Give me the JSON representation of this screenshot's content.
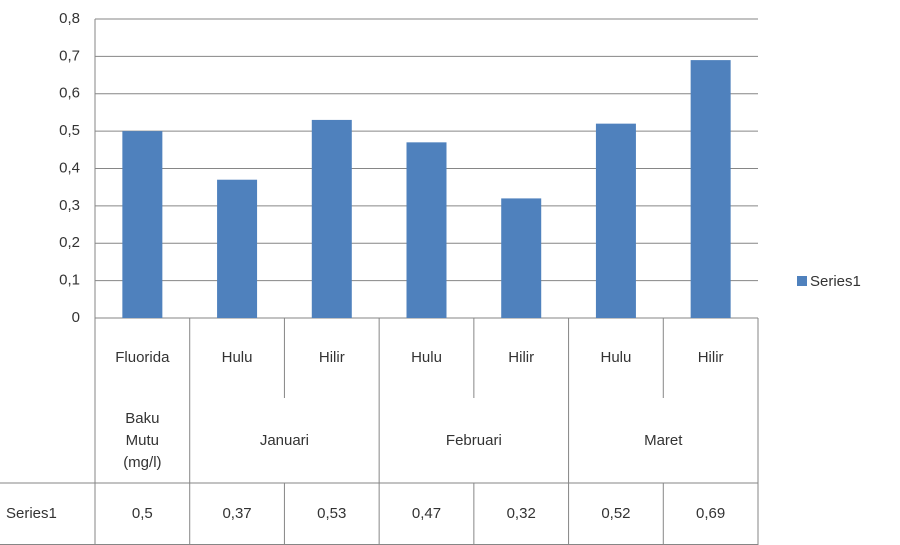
{
  "chart_data": {
    "type": "bar",
    "categories": [
      "Fluorida",
      "Hulu",
      "Hilir",
      "Hulu",
      "Hilir",
      "Hulu",
      "Hilir"
    ],
    "group_labels": [
      "Baku Mutu (mg/l)",
      "Januari",
      null,
      "Februari",
      null,
      "Maret",
      null
    ],
    "series": [
      {
        "name": "Series1",
        "color": "#4f81bd",
        "values": [
          0.5,
          0.37,
          0.53,
          0.47,
          0.32,
          0.52,
          0.69
        ],
        "value_labels": [
          "0,5",
          "0,37",
          "0,53",
          "0,47",
          "0,32",
          "0,52",
          "0,69"
        ]
      }
    ],
    "ylim": [
      0,
      0.8
    ],
    "yticks": [
      0,
      {
        "value": 0.1,
        "label": "0,1"
      },
      {
        "value": 0.2,
        "label": "0,2"
      },
      {
        "value": 0.3,
        "label": "0,3"
      },
      {
        "value": 0.4,
        "label": "0,4"
      },
      {
        "value": 0.5,
        "label": "0,5"
      },
      {
        "value": 0.6,
        "label": "0,6"
      },
      {
        "value": 0.7,
        "label": "0,7"
      },
      {
        "value": 0.8,
        "label": "0,8"
      }
    ],
    "grid": true,
    "legend": "right"
  }
}
